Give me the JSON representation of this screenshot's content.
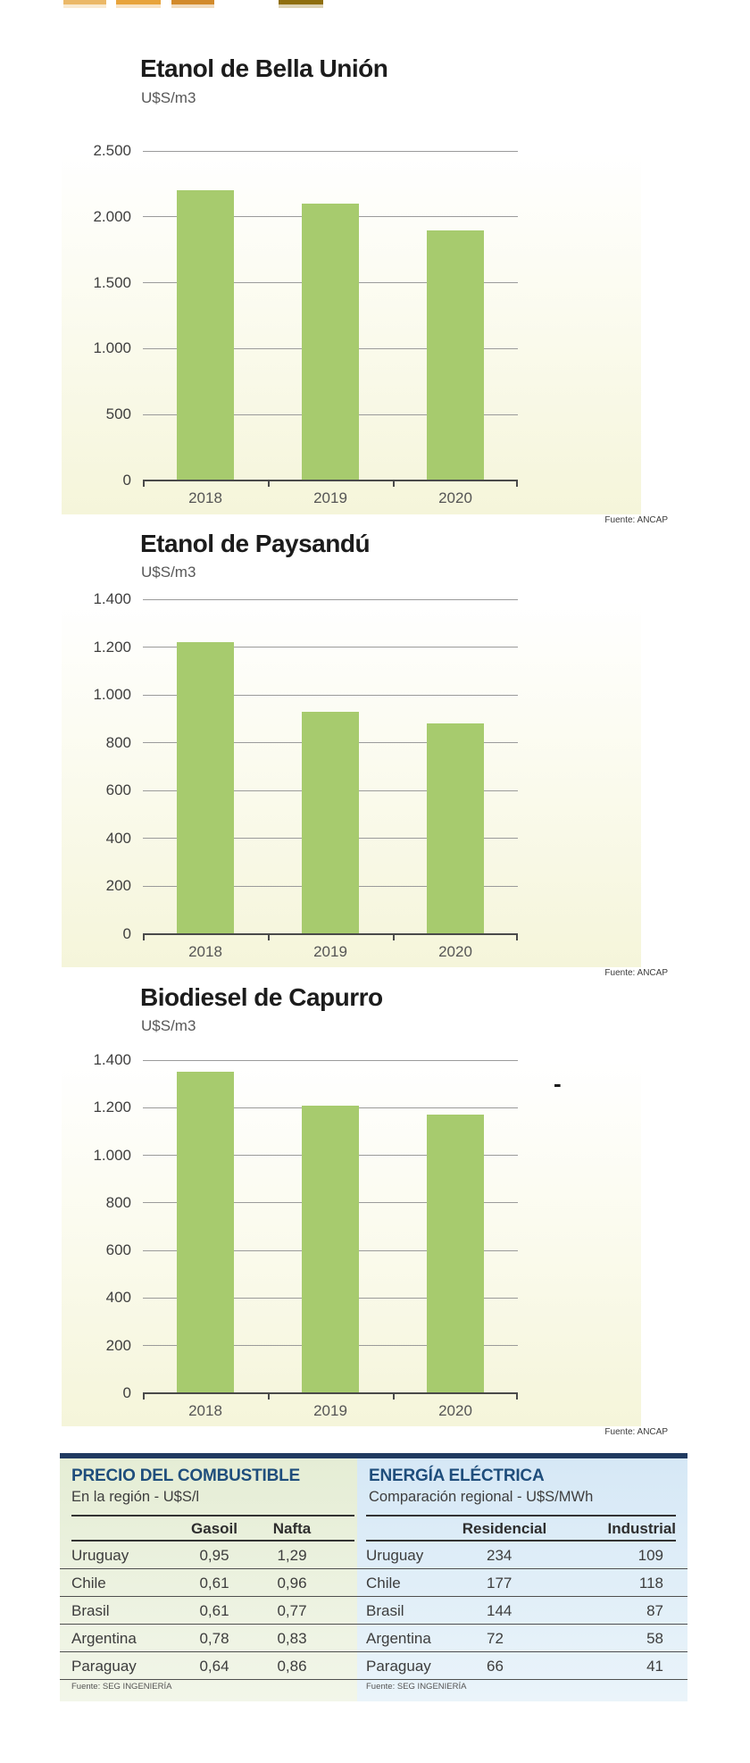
{
  "colors": {
    "bar_green": "#A7CB6E",
    "navy_bar": "#203A60",
    "table_title_blue": "#1F4E7C",
    "chart_bg_cream": "#F5F5DA",
    "panel_left_bg": "#E5EDD5",
    "panel_right_bg": "#D6E8F6"
  },
  "decorative_top_bars": {
    "colors": [
      "#EBB867",
      "#E8A33B",
      "#D28A2B",
      "#8F6E0E"
    ]
  },
  "chart_data": [
    {
      "type": "bar",
      "title": "Etanol de Bella Unión",
      "ylabel": "U$S/m3",
      "source": "Fuente: ANCAP",
      "categories": [
        "2018",
        "2019",
        "2020"
      ],
      "values": [
        2200,
        2100,
        1900
      ],
      "ylim": [
        0,
        2500
      ],
      "yticks": [
        {
          "label": "2.500",
          "value": 2500
        },
        {
          "label": "2.000",
          "value": 2000
        },
        {
          "label": "1.500",
          "value": 1500
        },
        {
          "label": "1.000",
          "value": 1000
        },
        {
          "label": "500",
          "value": 500
        },
        {
          "label": "0",
          "value": 0
        }
      ],
      "bar_color": "#A7CB6E",
      "grid": true,
      "legend": "none"
    },
    {
      "type": "bar",
      "title": "Etanol de Paysandú",
      "ylabel": "U$S/m3",
      "source": "Fuente: ANCAP",
      "categories": [
        "2018",
        "2019",
        "2020"
      ],
      "values": [
        1220,
        930,
        880
      ],
      "ylim": [
        0,
        1400
      ],
      "yticks": [
        {
          "label": "1.400",
          "value": 1400
        },
        {
          "label": "1.200",
          "value": 1200
        },
        {
          "label": "1.000",
          "value": 1000
        },
        {
          "label": "800",
          "value": 800
        },
        {
          "label": "600",
          "value": 600
        },
        {
          "label": "400",
          "value": 400
        },
        {
          "label": "200",
          "value": 200
        },
        {
          "label": "0",
          "value": 0
        }
      ],
      "bar_color": "#A7CB6E",
      "grid": true,
      "legend": "none"
    },
    {
      "type": "bar",
      "title": "Biodiesel de Capurro",
      "ylabel": "U$S/m3",
      "source": "Fuente: ANCAP",
      "categories": [
        "2018",
        "2019",
        "2020"
      ],
      "values": [
        1350,
        1210,
        1170
      ],
      "ylim": [
        0,
        1400
      ],
      "yticks": [
        {
          "label": "1.400",
          "value": 1400
        },
        {
          "label": "1.200",
          "value": 1200
        },
        {
          "label": "1.000",
          "value": 1000
        },
        {
          "label": "800",
          "value": 800
        },
        {
          "label": "600",
          "value": 600
        },
        {
          "label": "400",
          "value": 400
        },
        {
          "label": "200",
          "value": 200
        },
        {
          "label": "0",
          "value": 0
        }
      ],
      "bar_color": "#A7CB6E",
      "annotation": "-",
      "grid": true,
      "legend": "none"
    },
    {
      "type": "table",
      "title": "PRECIO DEL COMBUSTIBLE",
      "subtitle": "En la región - U$S/l",
      "columns": [
        "",
        "Gasoil",
        "Nafta"
      ],
      "rows": [
        [
          "Uruguay",
          "0,95",
          "1,29"
        ],
        [
          "Chile",
          "0,61",
          "0,96"
        ],
        [
          "Brasil",
          "0,61",
          "0,77"
        ],
        [
          "Argentina",
          "0,78",
          "0,83"
        ],
        [
          "Paraguay",
          "0,64",
          "0,86"
        ]
      ],
      "source": "Fuente: SEG INGENIERÍA"
    },
    {
      "type": "table",
      "title": "ENERGÍA ELÉCTRICA",
      "subtitle": "Comparación regional - U$S/MWh",
      "columns": [
        "",
        "Residencial",
        "Industrial"
      ],
      "rows": [
        [
          "Uruguay",
          "234",
          "109"
        ],
        [
          "Chile",
          "177",
          "118"
        ],
        [
          "Brasil",
          "144",
          "87"
        ],
        [
          "Argentina",
          "72",
          "58"
        ],
        [
          "Paraguay",
          "66",
          "41"
        ]
      ],
      "source": "Fuente: SEG INGENIERÍA"
    }
  ]
}
